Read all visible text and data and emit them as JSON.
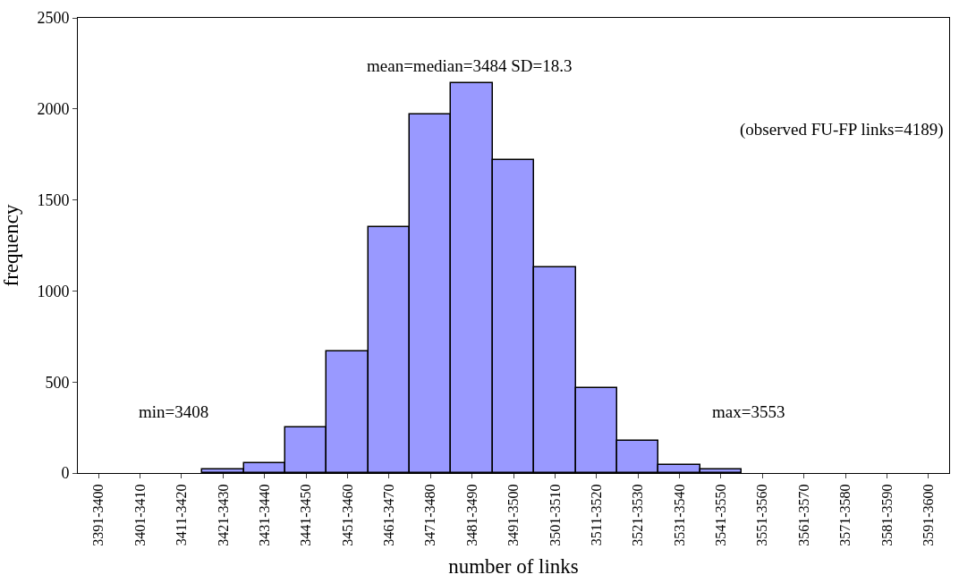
{
  "chart_data": {
    "type": "bar",
    "xlabel": "number of links",
    "ylabel": "frequency",
    "categories": [
      "3391-3400",
      "3401-3410",
      "3411-3420",
      "3421-3430",
      "3431-3440",
      "3441-3450",
      "3451-3460",
      "3461-3470",
      "3471-3480",
      "3481-3490",
      "3491-3500",
      "3501-3510",
      "3511-3520",
      "3521-3530",
      "3531-3540",
      "3541-3550",
      "3551-3560",
      "3561-3570",
      "3571-3580",
      "3581-3590",
      "3591-3600"
    ],
    "values": [
      0,
      0,
      0,
      18,
      54,
      250,
      670,
      1350,
      1970,
      2140,
      1720,
      1130,
      468,
      179,
      45,
      18,
      0,
      0,
      0,
      0,
      0
    ],
    "color": "#9999ff",
    "ylim": [
      0,
      2500
    ],
    "yticks": [
      0,
      500,
      1000,
      1500,
      2000,
      2500
    ],
    "annotations": [
      "mean=median=3484 SD=18.3",
      "(observed FU-FP links=4189)",
      "min=3408",
      "max=3553"
    ]
  }
}
